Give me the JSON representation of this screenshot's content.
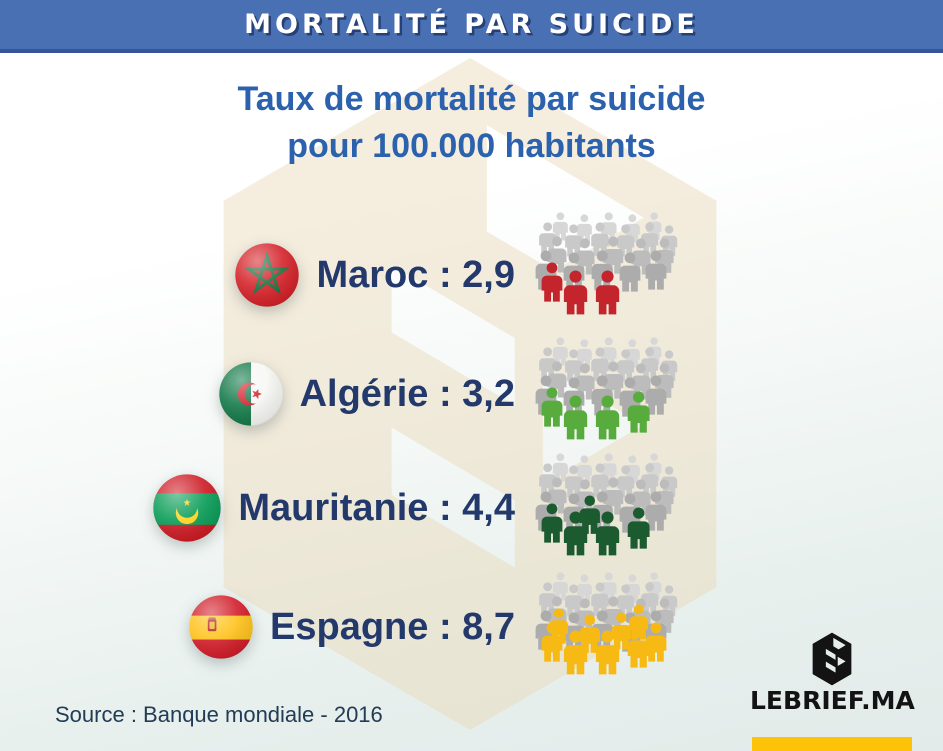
{
  "header": {
    "title": "MORTALITÉ PAR SUICIDE"
  },
  "title": {
    "line1": "Taux de mortalité par suicide",
    "line2": "pour 100.000 habitants"
  },
  "rows": [
    {
      "country": "Maroc",
      "label": "Maroc : 2,9",
      "value": "2,9",
      "people_highlighted": 3,
      "highlight_color": "#c4242b",
      "flag": "morocco"
    },
    {
      "country": "Algérie",
      "label": "Algérie : 3,2",
      "value": "3,2",
      "people_highlighted": 4,
      "highlight_color": "#58ab3d",
      "flag": "algeria"
    },
    {
      "country": "Mauritanie",
      "label": "Mauritanie : 4,4",
      "value": "4,4",
      "people_highlighted": 5,
      "highlight_color": "#1c5a30",
      "flag": "mauritania"
    },
    {
      "country": "Espagne",
      "label": "Espagne : 8,7",
      "value": "8,7",
      "people_highlighted": 9,
      "highlight_color": "#f7ba14",
      "flag": "spain"
    }
  ],
  "chart_data": {
    "type": "bar",
    "variant": "pictogram-crowd",
    "title": "Taux de mortalité par suicide pour 100.000 habitants",
    "categories": [
      "Maroc",
      "Algérie",
      "Mauritanie",
      "Espagne"
    ],
    "values": [
      2.9,
      3.2,
      4.4,
      8.7
    ],
    "value_labels": [
      "2,9",
      "3,2",
      "4,4",
      "8,7"
    ],
    "highlight_colors": [
      "#c4242b",
      "#58ab3d",
      "#1c5a30",
      "#f7ba14"
    ],
    "highlighted_figures": [
      3,
      4,
      5,
      9
    ],
    "crowd_color": "#bdbdbd",
    "source": "Banque mondiale - 2016",
    "legend_position": "none",
    "grid": false
  },
  "footer": {
    "source": "Source : Banque mondiale - 2016",
    "brand": "LEBRIEF.MA"
  },
  "colors": {
    "banner_blue": "#4a70b4",
    "banner_edge": "#35549b",
    "title_blue": "#2b61ad",
    "label_navy": "#24396b",
    "accent_yellow": "#fdc309",
    "watermark_cream": "#ead9b8",
    "brand_black": "#131313"
  }
}
